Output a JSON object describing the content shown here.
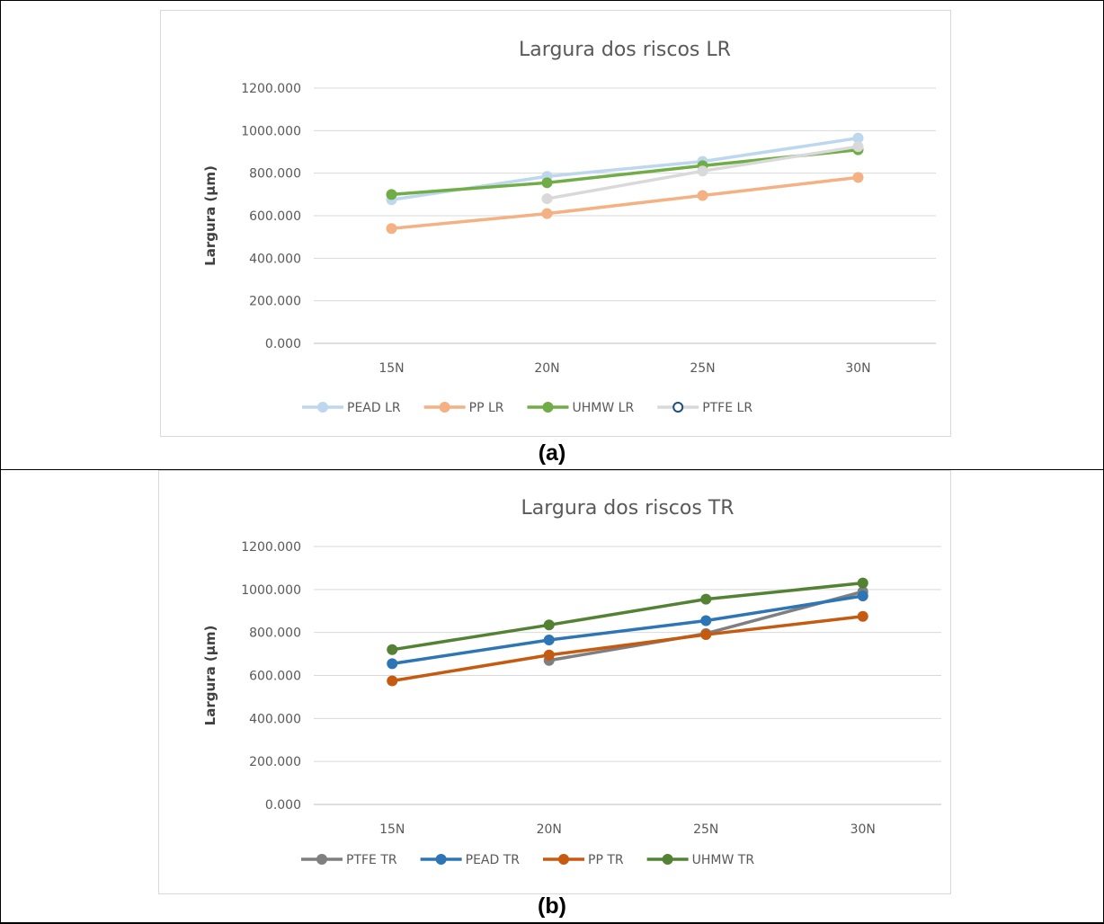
{
  "captions": [
    "(a)",
    "(b)"
  ],
  "chart_data": [
    {
      "type": "line",
      "title": "Largura dos riscos LR",
      "xlabel": "",
      "ylabel": "Largura (µm)",
      "categories": [
        "15N",
        "20N",
        "25N",
        "30N"
      ],
      "ylim": [
        0,
        1200
      ],
      "yticks": [
        "0.000",
        "200.000",
        "400.000",
        "600.000",
        "800.000",
        "1000.000",
        "1200.000"
      ],
      "grid": true,
      "legend_position": "bottom",
      "series": [
        {
          "name": "PEAD LR",
          "values": [
            675,
            785,
            855,
            965
          ],
          "color": "#bdd7ee",
          "marker": "filled"
        },
        {
          "name": "PP LR",
          "values": [
            540,
            610,
            695,
            780
          ],
          "color": "#f4b183",
          "marker": "filled"
        },
        {
          "name": "UHMW LR",
          "values": [
            700,
            755,
            835,
            910
          ],
          "color": "#70ad47",
          "marker": "filled"
        },
        {
          "name": "PTFE LR",
          "values": [
            null,
            680,
            810,
            925
          ],
          "color": "#d9d9d9",
          "marker": "filled",
          "legend_marker": "hollow",
          "legend_marker_color": "#1f4e79"
        }
      ]
    },
    {
      "type": "line",
      "title": "Largura dos riscos TR",
      "xlabel": "",
      "ylabel": "Largura (µm)",
      "categories": [
        "15N",
        "20N",
        "25N",
        "30N"
      ],
      "ylim": [
        0,
        1200
      ],
      "yticks": [
        "0.000",
        "200.000",
        "400.000",
        "600.000",
        "800.000",
        "1000.000",
        "1200.000"
      ],
      "grid": true,
      "legend_position": "bottom",
      "series": [
        {
          "name": "PTFE TR",
          "values": [
            null,
            670,
            795,
            990
          ],
          "color": "#7f7f7f",
          "marker": "filled"
        },
        {
          "name": "PEAD TR",
          "values": [
            655,
            765,
            855,
            970
          ],
          "color": "#2e75b6",
          "marker": "filled"
        },
        {
          "name": "PP TR",
          "values": [
            575,
            695,
            790,
            875
          ],
          "color": "#c55a11",
          "marker": "filled"
        },
        {
          "name": "UHMW TR",
          "values": [
            720,
            835,
            955,
            1030
          ],
          "color": "#548235",
          "marker": "filled"
        }
      ]
    }
  ]
}
